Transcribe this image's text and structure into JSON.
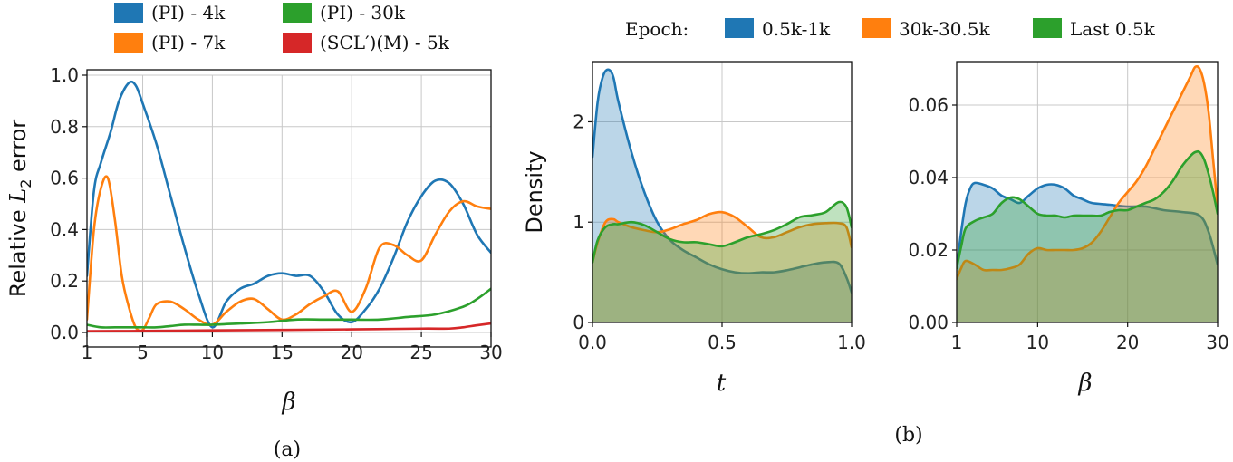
{
  "chart_data": [
    {
      "type": "line",
      "caption": "(a)",
      "ylabel": "Relative L2 error",
      "ylabel_main": "Relative ",
      "ylabel_var": "L",
      "ylabel_sub": "2",
      "ylabel_tail": " error",
      "xlabel": "β",
      "xlim": [
        1,
        30
      ],
      "ylim": [
        0,
        1.0
      ],
      "xticks": [
        1,
        5,
        10,
        15,
        20,
        25,
        30
      ],
      "yticks": [
        0.0,
        0.2,
        0.4,
        0.6,
        0.8,
        1.0
      ],
      "ytick_labels": [
        "0.0",
        "0.2",
        "0.4",
        "0.6",
        "0.8",
        "1.0"
      ],
      "series": [
        {
          "name": "(PI) - 4k",
          "color": "#1f77b4",
          "x": [
            1,
            1.5,
            2,
            2.7,
            3.3,
            4,
            4.5,
            5,
            6,
            7,
            8,
            9,
            10,
            11,
            12,
            13,
            14,
            15,
            16,
            17,
            18,
            19,
            20,
            21,
            22,
            23,
            24,
            25,
            26,
            27,
            28,
            29,
            30
          ],
          "y": [
            0.22,
            0.55,
            0.66,
            0.78,
            0.9,
            0.97,
            0.96,
            0.89,
            0.73,
            0.53,
            0.33,
            0.15,
            0.02,
            0.12,
            0.17,
            0.19,
            0.22,
            0.23,
            0.22,
            0.22,
            0.16,
            0.07,
            0.04,
            0.09,
            0.17,
            0.29,
            0.43,
            0.53,
            0.59,
            0.58,
            0.5,
            0.38,
            0.31
          ]
        },
        {
          "name": "(PI) - 7k",
          "color": "#ff7f0e",
          "x": [
            1,
            1.5,
            2,
            2.5,
            3,
            3.5,
            4,
            4.5,
            5,
            5.5,
            6,
            7,
            8,
            9,
            10,
            11,
            12,
            13,
            14,
            15,
            16,
            17,
            18,
            19,
            20,
            21,
            22,
            23,
            24,
            25,
            26,
            27,
            28,
            29,
            30
          ],
          "y": [
            0.05,
            0.4,
            0.56,
            0.6,
            0.44,
            0.22,
            0.1,
            0.02,
            0.01,
            0.06,
            0.11,
            0.12,
            0.09,
            0.05,
            0.03,
            0.08,
            0.12,
            0.13,
            0.09,
            0.05,
            0.07,
            0.11,
            0.14,
            0.16,
            0.08,
            0.17,
            0.33,
            0.34,
            0.3,
            0.28,
            0.38,
            0.47,
            0.51,
            0.49,
            0.48
          ]
        },
        {
          "name": "(PI) - 30k",
          "color": "#2ca02c",
          "x": [
            1,
            2,
            3,
            4,
            5,
            6,
            7,
            8,
            9,
            10,
            12,
            14,
            16,
            18,
            20,
            22,
            24,
            26,
            28,
            29,
            30
          ],
          "y": [
            0.03,
            0.02,
            0.02,
            0.02,
            0.02,
            0.02,
            0.025,
            0.03,
            0.03,
            0.03,
            0.035,
            0.04,
            0.05,
            0.05,
            0.05,
            0.05,
            0.06,
            0.07,
            0.1,
            0.13,
            0.17
          ]
        },
        {
          "name": "(SCL′)(M) - 5k",
          "color": "#d62728",
          "x": [
            1,
            5,
            10,
            15,
            20,
            25,
            27,
            28,
            29,
            30
          ],
          "y": [
            0.005,
            0.006,
            0.008,
            0.01,
            0.012,
            0.015,
            0.015,
            0.02,
            0.028,
            0.035
          ]
        }
      ]
    },
    {
      "type": "area",
      "caption": "(b)",
      "xlabel": "t",
      "ylabel": "Density",
      "xlim": [
        0,
        1.0
      ],
      "ylim": [
        0,
        2.6
      ],
      "xticks": [
        0.0,
        0.5,
        1.0
      ],
      "xtick_labels": [
        "0.0",
        "0.5",
        "1.0"
      ],
      "yticks": [
        0,
        1,
        2
      ],
      "ytick_labels": [
        "0",
        "1",
        "2"
      ],
      "series": [
        {
          "name": "0.5k-1k",
          "color": "#1f77b4",
          "x": [
            0,
            0.02,
            0.04,
            0.06,
            0.08,
            0.1,
            0.15,
            0.2,
            0.25,
            0.3,
            0.35,
            0.4,
            0.45,
            0.5,
            0.55,
            0.6,
            0.65,
            0.7,
            0.75,
            0.8,
            0.85,
            0.9,
            0.95,
            0.98,
            1.0
          ],
          "y": [
            1.65,
            2.2,
            2.45,
            2.52,
            2.45,
            2.2,
            1.7,
            1.3,
            1.0,
            0.82,
            0.72,
            0.65,
            0.58,
            0.53,
            0.5,
            0.49,
            0.5,
            0.5,
            0.52,
            0.55,
            0.58,
            0.6,
            0.59,
            0.45,
            0.3
          ]
        },
        {
          "name": "30k-30.5k",
          "color": "#ff7f0e",
          "x": [
            0,
            0.02,
            0.05,
            0.08,
            0.1,
            0.15,
            0.2,
            0.25,
            0.3,
            0.35,
            0.4,
            0.45,
            0.5,
            0.55,
            0.6,
            0.65,
            0.7,
            0.75,
            0.8,
            0.85,
            0.9,
            0.95,
            0.98,
            1.0
          ],
          "y": [
            0.6,
            0.8,
            1.0,
            1.03,
            1.0,
            0.95,
            0.92,
            0.9,
            0.93,
            0.98,
            1.02,
            1.08,
            1.1,
            1.05,
            0.95,
            0.85,
            0.85,
            0.9,
            0.95,
            0.98,
            0.99,
            0.99,
            0.95,
            0.75
          ]
        },
        {
          "name": "Last 0.5k",
          "color": "#2ca02c",
          "x": [
            0,
            0.02,
            0.05,
            0.08,
            0.1,
            0.15,
            0.2,
            0.25,
            0.3,
            0.35,
            0.4,
            0.45,
            0.5,
            0.55,
            0.6,
            0.65,
            0.7,
            0.75,
            0.8,
            0.85,
            0.9,
            0.95,
            0.98,
            1.0
          ],
          "y": [
            0.6,
            0.82,
            0.95,
            0.98,
            0.98,
            1.0,
            0.97,
            0.9,
            0.83,
            0.8,
            0.8,
            0.78,
            0.76,
            0.8,
            0.85,
            0.88,
            0.92,
            0.98,
            1.05,
            1.07,
            1.1,
            1.2,
            1.15,
            0.95
          ]
        }
      ]
    },
    {
      "type": "area",
      "caption": "(b)",
      "xlabel": "β",
      "ylabel": "",
      "xlim": [
        1,
        30
      ],
      "ylim": [
        0,
        0.072
      ],
      "xticks": [
        1,
        10,
        20,
        30
      ],
      "xtick_labels": [
        "1",
        "10",
        "20",
        "30"
      ],
      "yticks": [
        0.0,
        0.02,
        0.04,
        0.06
      ],
      "ytick_labels": [
        "0.00",
        "0.02",
        "0.04",
        "0.06"
      ],
      "series": [
        {
          "name": "0.5k-1k",
          "color": "#1f77b4",
          "x": [
            1,
            1.5,
            2,
            2.5,
            3,
            4,
            5,
            6,
            7,
            8,
            9,
            10,
            11,
            12,
            13,
            14,
            15,
            16,
            18,
            20,
            22,
            24,
            26,
            28,
            29,
            30
          ],
          "y": [
            0.015,
            0.025,
            0.033,
            0.037,
            0.0385,
            0.038,
            0.037,
            0.035,
            0.034,
            0.033,
            0.035,
            0.037,
            0.038,
            0.038,
            0.037,
            0.035,
            0.034,
            0.033,
            0.0325,
            0.032,
            0.032,
            0.031,
            0.0305,
            0.0295,
            0.025,
            0.016
          ]
        },
        {
          "name": "30k-30.5k",
          "color": "#ff7f0e",
          "x": [
            1,
            1.5,
            2,
            3,
            4,
            5,
            6,
            7,
            8,
            9,
            10,
            11,
            12,
            13,
            14,
            15,
            16,
            17,
            18,
            19,
            20,
            21,
            22,
            23,
            24,
            25,
            26,
            27,
            27.5,
            28,
            28.5,
            29,
            29.5,
            30
          ],
          "y": [
            0.012,
            0.015,
            0.017,
            0.016,
            0.0145,
            0.0145,
            0.0145,
            0.015,
            0.016,
            0.019,
            0.0205,
            0.02,
            0.02,
            0.02,
            0.02,
            0.0205,
            0.022,
            0.025,
            0.029,
            0.033,
            0.036,
            0.039,
            0.043,
            0.048,
            0.053,
            0.058,
            0.063,
            0.068,
            0.0705,
            0.07,
            0.066,
            0.058,
            0.045,
            0.032
          ]
        },
        {
          "name": "Last 0.5k",
          "color": "#2ca02c",
          "x": [
            1,
            1.5,
            2,
            3,
            4,
            5,
            6,
            7,
            8,
            9,
            10,
            11,
            12,
            13,
            14,
            15,
            16,
            17,
            18,
            19,
            20,
            21,
            22,
            23,
            24,
            25,
            26,
            27,
            27.5,
            28,
            28.5,
            29,
            29.5,
            30
          ],
          "y": [
            0.015,
            0.021,
            0.026,
            0.028,
            0.029,
            0.03,
            0.033,
            0.0345,
            0.034,
            0.032,
            0.03,
            0.0295,
            0.0295,
            0.029,
            0.0295,
            0.0295,
            0.0295,
            0.0295,
            0.0305,
            0.031,
            0.031,
            0.032,
            0.033,
            0.034,
            0.036,
            0.039,
            0.043,
            0.046,
            0.047,
            0.047,
            0.045,
            0.041,
            0.036,
            0.03
          ]
        }
      ]
    }
  ],
  "legend_a": [
    "(PI) - 4k",
    "(PI) - 7k",
    "(PI) - 30k",
    "(SCL′)(M) - 5k"
  ],
  "legend_b": {
    "title": "Epoch:",
    "items": [
      "0.5k-1k",
      "30k-30.5k",
      "Last 0.5k"
    ]
  },
  "colors": {
    "blue": "#1f77b4",
    "orange": "#ff7f0e",
    "green": "#2ca02c",
    "red": "#d62728"
  }
}
